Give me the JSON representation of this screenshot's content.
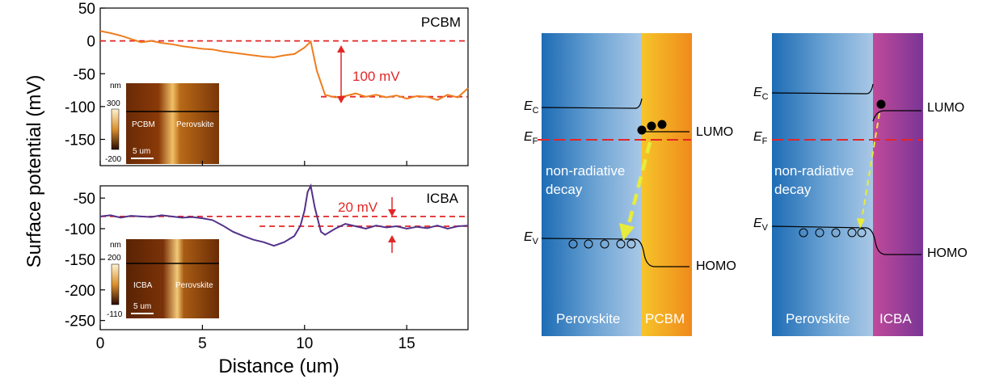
{
  "chart_data": [
    {
      "type": "line",
      "panel": "top",
      "label": "PCBM",
      "xlim": [
        0,
        18
      ],
      "ylim": [
        -190,
        50
      ],
      "yticks": [
        50,
        0,
        -50,
        -100,
        -150
      ],
      "color": "#ee7d1f",
      "x": [
        0,
        0.5,
        1,
        1.5,
        2,
        2.5,
        3,
        3.5,
        4,
        4.5,
        5,
        5.5,
        6,
        6.5,
        7,
        7.5,
        8,
        8.5,
        9,
        9.5,
        10,
        10.3,
        10.6,
        11,
        11.5,
        12,
        12.5,
        13,
        13.5,
        14,
        14.5,
        15,
        15.5,
        16,
        16.5,
        17,
        17.5,
        18
      ],
      "y": [
        15,
        12,
        8,
        3,
        -2,
        0,
        -3,
        -5,
        -8,
        -10,
        -12,
        -13,
        -16,
        -18,
        -20,
        -22,
        -24,
        -25,
        -22,
        -20,
        -10,
        -1,
        -45,
        -82,
        -86,
        -84,
        -80,
        -85,
        -82,
        -86,
        -83,
        -88,
        -84,
        -85,
        -90,
        -82,
        -86,
        -72
      ],
      "ref_lines": [
        0,
        -85
      ],
      "annotation": "100 mV",
      "inset": {
        "label_left": "PCBM",
        "label_right": "Perovskite",
        "scale": "5 um",
        "unit": "nm",
        "cmax": "300",
        "cmin": "-200"
      }
    },
    {
      "type": "line",
      "panel": "bottom",
      "label": "ICBA",
      "xlim": [
        0,
        18
      ],
      "ylim": [
        -265,
        -30
      ],
      "yticks": [
        -50,
        -100,
        -150,
        -200,
        -250
      ],
      "color": "#53318a",
      "x": [
        0,
        0.5,
        1,
        1.5,
        2,
        2.5,
        3,
        3.5,
        4,
        4.5,
        5,
        5.5,
        6,
        6.5,
        7,
        7.5,
        8,
        8.5,
        9,
        9.5,
        9.8,
        10,
        10.15,
        10.3,
        10.5,
        10.8,
        11,
        11.5,
        12,
        12.5,
        13,
        13.5,
        14,
        14.5,
        15,
        15.5,
        16,
        16.5,
        17,
        17.5,
        18
      ],
      "y": [
        -80,
        -78,
        -82,
        -79,
        -80,
        -81,
        -78,
        -80,
        -82,
        -81,
        -83,
        -86,
        -95,
        -105,
        -112,
        -118,
        -122,
        -128,
        -122,
        -112,
        -95,
        -70,
        -40,
        -30,
        -65,
        -105,
        -110,
        -100,
        -92,
        -96,
        -100,
        -95,
        -98,
        -96,
        -100,
        -97,
        -99,
        -95,
        -100,
        -96,
        -95
      ],
      "ref_lines": [
        -80,
        -96
      ],
      "annotation": "20 mV",
      "inset": {
        "label_left": "ICBA",
        "label_right": "Perovskite",
        "scale": "5 um",
        "unit": "nm",
        "cmax": "200",
        "cmin": "-110"
      }
    }
  ],
  "axes": {
    "xlabel": "Distance (um)",
    "ylabel": "Surface potential (mV)",
    "xticks": [
      "0",
      "5",
      "10",
      "15"
    ]
  },
  "diagrams": {
    "left": {
      "region_left": "Perovskite",
      "region_right": "PCBM",
      "ec": "E",
      "ec_sub": "C",
      "ef": "E",
      "ef_sub": "F",
      "ev": "E",
      "ev_sub": "V",
      "lumo": "LUMO",
      "homo": "HOMO",
      "decay_line1": "non-radiative",
      "decay_line2": "decay",
      "right_color": "#f2a21c"
    },
    "right": {
      "region_left": "Perovskite",
      "region_right": "ICBA",
      "ec": "E",
      "ec_sub": "C",
      "ef": "E",
      "ef_sub": "F",
      "ev": "E",
      "ev_sub": "V",
      "lumo": "LUMO",
      "homo": "HOMO",
      "decay_line1": "non-radiative",
      "decay_line2": "decay",
      "right_color": "#9a3f9e"
    }
  },
  "colors": {
    "reference_line": "#e32626",
    "perovskite_blue": "#1f6fb8",
    "decay_arrow": "#e8ec3a"
  }
}
